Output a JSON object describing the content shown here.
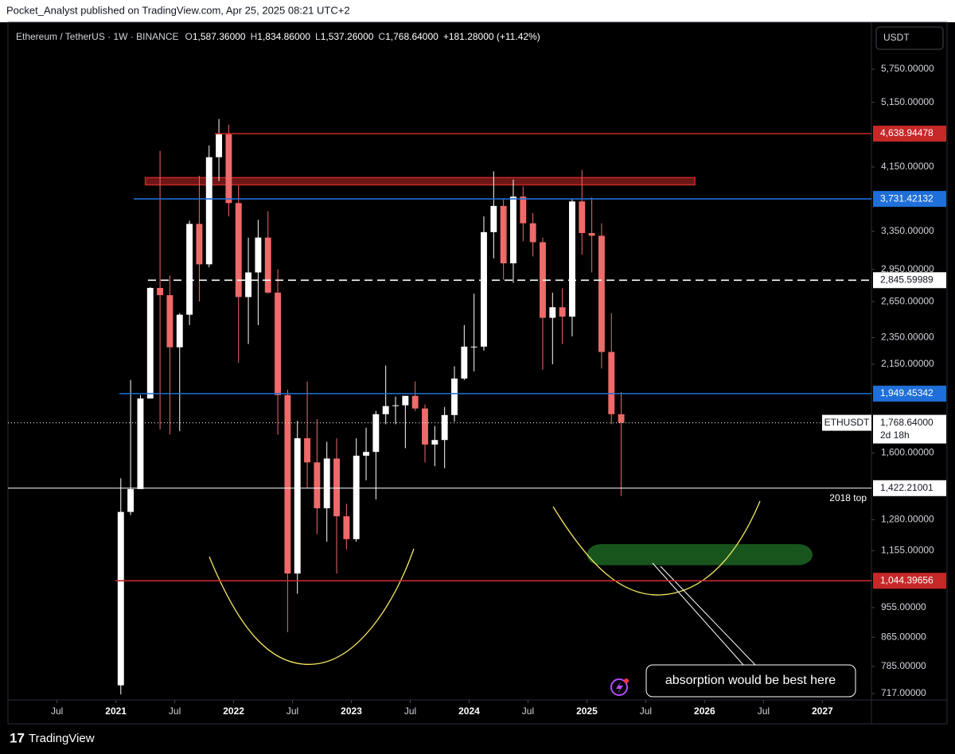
{
  "header": {
    "title": "Pocket_Analyst published on TradingView.com, Apr 25, 2025 08:21 UTC+2"
  },
  "footer": {
    "brand": "TradingView"
  },
  "chart_data": {
    "type": "candlestick",
    "legend": {
      "symbol": "Ethereum / TetherUS · 1W · BINANCE",
      "ohlc": [
        {
          "key": "O",
          "value": "1,587.36000"
        },
        {
          "key": "H",
          "value": "1,834.86000"
        },
        {
          "key": "L",
          "value": "1,537.26000"
        },
        {
          "key": "C",
          "value": "1,768.64000"
        }
      ],
      "change": "+181.28000 (+11.42%)"
    },
    "currency": "USDT",
    "log_scale": true,
    "up_color": "#ffffff",
    "down_color": "#ef6a6a",
    "xlim": [
      "2020-02",
      "2027-06"
    ],
    "xticks": [
      {
        "value": "2020-07",
        "label": "Jul"
      },
      {
        "value": "2021-01",
        "label": "2021"
      },
      {
        "value": "2021-07",
        "label": "Jul"
      },
      {
        "value": "2022-01",
        "label": "2022"
      },
      {
        "value": "2022-07",
        "label": "Jul"
      },
      {
        "value": "2023-01",
        "label": "2023"
      },
      {
        "value": "2023-07",
        "label": "Jul"
      },
      {
        "value": "2024-01",
        "label": "2024"
      },
      {
        "value": "2024-07",
        "label": "Jul"
      },
      {
        "value": "2025-01",
        "label": "2025"
      },
      {
        "value": "2025-07",
        "label": "Jul"
      },
      {
        "value": "2026-01",
        "label": "2026"
      },
      {
        "value": "2026-07",
        "label": "Jul"
      },
      {
        "value": "2027-01",
        "label": "2027"
      }
    ],
    "ylim": [
      702,
      6636
    ],
    "yticks": [
      {
        "value": 5750,
        "label": "5,750.00000"
      },
      {
        "value": 5150,
        "label": "5,150.00000"
      },
      {
        "value": 4150,
        "label": "4,150.00000"
      },
      {
        "value": 3350,
        "label": "3,350.00000"
      },
      {
        "value": 2950,
        "label": "2,950.00000"
      },
      {
        "value": 2650,
        "label": "2,650.00000"
      },
      {
        "value": 2350,
        "label": "2,350.00000"
      },
      {
        "value": 2150,
        "label": "2,150.00000"
      },
      {
        "value": 1600,
        "label": "1,600.00000"
      },
      {
        "value": 1280,
        "label": "1,280.00000"
      },
      {
        "value": 1155,
        "label": "1,155.00000"
      },
      {
        "value": 955,
        "label": "955.00000"
      },
      {
        "value": 865,
        "label": "865.00000"
      },
      {
        "value": 785,
        "label": "785.00000"
      },
      {
        "value": 717,
        "label": "717.00000"
      }
    ],
    "x": [
      "2021-01",
      "2021-02",
      "2021-03",
      "2021-04",
      "2021-05",
      "2021-06",
      "2021-07",
      "2021-08",
      "2021-09",
      "2021-10",
      "2021-11",
      "2021-12",
      "2022-01",
      "2022-02",
      "2022-03",
      "2022-04",
      "2022-05",
      "2022-06",
      "2022-07",
      "2022-08",
      "2022-09",
      "2022-10",
      "2022-11",
      "2022-12",
      "2023-01",
      "2023-02",
      "2023-03",
      "2023-04",
      "2023-05",
      "2023-06",
      "2023-07",
      "2023-08",
      "2023-09",
      "2023-10",
      "2023-11",
      "2023-12",
      "2024-01",
      "2024-02",
      "2024-03",
      "2024-04",
      "2024-05",
      "2024-06",
      "2024-07",
      "2024-08",
      "2024-09",
      "2024-10",
      "2024-11",
      "2024-12",
      "2025-01",
      "2025-02",
      "2025-03",
      "2025-04"
    ],
    "ohlc": [
      [
        737,
        1470,
        715,
        1314
      ],
      [
        1314,
        2040,
        1300,
        1418
      ],
      [
        1418,
        1940,
        1440,
        1918
      ],
      [
        1918,
        2780,
        1940,
        2773
      ],
      [
        2773,
        4380,
        1730,
        2707
      ],
      [
        2707,
        2890,
        1700,
        2275
      ],
      [
        2275,
        2550,
        1720,
        2536
      ],
      [
        2536,
        3470,
        2450,
        3433
      ],
      [
        3433,
        4030,
        2650,
        3000
      ],
      [
        3000,
        4460,
        2970,
        4288
      ],
      [
        4288,
        4870,
        3960,
        4630
      ],
      [
        4630,
        4780,
        3520,
        3680
      ],
      [
        3680,
        3900,
        2160,
        2690
      ],
      [
        2690,
        3280,
        2300,
        2920
      ],
      [
        2920,
        3480,
        2450,
        3280
      ],
      [
        3280,
        3580,
        2720,
        2730
      ],
      [
        2730,
        2950,
        1700,
        1940
      ],
      [
        1940,
        1975,
        880,
        1070
      ],
      [
        1070,
        1780,
        1000,
        1680
      ],
      [
        1680,
        2030,
        1420,
        1550
      ],
      [
        1550,
        1790,
        1220,
        1330
      ],
      [
        1330,
        1660,
        1190,
        1570
      ],
      [
        1570,
        1680,
        1070,
        1295
      ],
      [
        1295,
        1350,
        1160,
        1200
      ],
      [
        1200,
        1680,
        1190,
        1585
      ],
      [
        1585,
        1740,
        1460,
        1605
      ],
      [
        1605,
        1840,
        1370,
        1820
      ],
      [
        1820,
        2140,
        1760,
        1870
      ],
      [
        1870,
        1930,
        1760,
        1875
      ],
      [
        1875,
        1930,
        1625,
        1935
      ],
      [
        1935,
        2030,
        1840,
        1855
      ],
      [
        1855,
        1880,
        1550,
        1645
      ],
      [
        1645,
        1750,
        1530,
        1670
      ],
      [
        1670,
        1865,
        1520,
        1815
      ],
      [
        1815,
        2135,
        1775,
        2050
      ],
      [
        2050,
        2450,
        2040,
        2280
      ],
      [
        2280,
        2720,
        2100,
        2280
      ],
      [
        2280,
        3520,
        2250,
        3340
      ],
      [
        3340,
        4090,
        3060,
        3645
      ],
      [
        3645,
        3730,
        2850,
        3010
      ],
      [
        3010,
        3980,
        2820,
        3760
      ],
      [
        3760,
        3890,
        3240,
        3440
      ],
      [
        3440,
        3560,
        3080,
        3230
      ],
      [
        3230,
        3280,
        2110,
        2510
      ],
      [
        2510,
        2730,
        2150,
        2600
      ],
      [
        2600,
        2770,
        2300,
        2520
      ],
      [
        2520,
        3730,
        2360,
        3700
      ],
      [
        3700,
        4110,
        3100,
        3330
      ],
      [
        3330,
        3750,
        2920,
        3300
      ],
      [
        3300,
        3440,
        2120,
        2240
      ],
      [
        2240,
        2550,
        1760,
        1820
      ],
      [
        1820,
        1960,
        1385,
        1769
      ]
    ],
    "levels": [
      {
        "value": 4638.94478,
        "label": "4,638.94478",
        "color": "#c62828",
        "style": "solid"
      },
      {
        "value": 3731.42132,
        "label": "3,731.42132",
        "color": "#1e6fd9",
        "style": "solid"
      },
      {
        "value": 2845.59989,
        "label": "2,845.59989",
        "color": "#ffffff",
        "style": "dashed"
      },
      {
        "value": 1949.45342,
        "label": "1,949.45342",
        "color": "#1e6fd9",
        "style": "solid"
      },
      {
        "value": 1768.64,
        "label": "1,768.64000",
        "color": "#ffffff",
        "style": "dotted",
        "symbol_tag": "ETHUSDT",
        "countdown": "2d 18h"
      },
      {
        "value": 1422.21001,
        "label": "1,422.21001",
        "color": "#ffffff",
        "style": "thin",
        "note": "2018 top"
      },
      {
        "value": 1044.39656,
        "label": "1,044.39656",
        "color": "#c62828",
        "style": "solid"
      }
    ],
    "zones": [
      {
        "low": 3910,
        "high": 4006,
        "from": "2021-04",
        "to": "2025-12",
        "color": "#c62828"
      },
      {
        "low": 1100,
        "high": 1180,
        "from": "2025-01",
        "to": "2026-12",
        "color": "#1b5e20"
      }
    ],
    "annotation": "absorption would be best here"
  }
}
